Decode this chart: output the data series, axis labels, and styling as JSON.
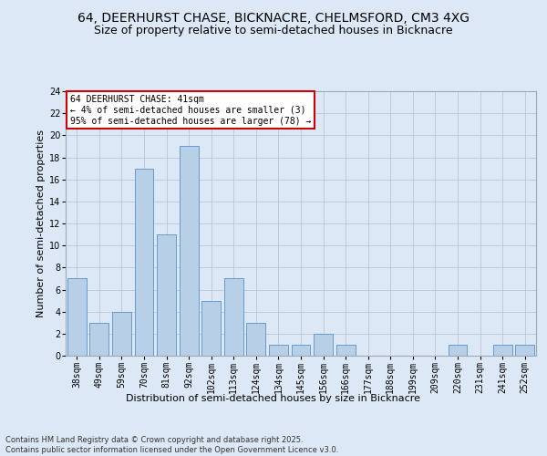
{
  "title1": "64, DEERHURST CHASE, BICKNACRE, CHELMSFORD, CM3 4XG",
  "title2": "Size of property relative to semi-detached houses in Bicknacre",
  "xlabel": "Distribution of semi-detached houses by size in Bicknacre",
  "ylabel": "Number of semi-detached properties",
  "categories": [
    "38sqm",
    "49sqm",
    "59sqm",
    "70sqm",
    "81sqm",
    "92sqm",
    "102sqm",
    "113sqm",
    "124sqm",
    "134sqm",
    "145sqm",
    "156sqm",
    "166sqm",
    "177sqm",
    "188sqm",
    "199sqm",
    "209sqm",
    "220sqm",
    "231sqm",
    "241sqm",
    "252sqm"
  ],
  "values": [
    7,
    3,
    4,
    17,
    11,
    19,
    5,
    7,
    3,
    1,
    1,
    2,
    1,
    0,
    0,
    0,
    0,
    1,
    0,
    1,
    1
  ],
  "bar_color": "#b8cfe8",
  "bar_edge_color": "#6699cc",
  "annotation_text": "64 DEERHURST CHASE: 41sqm\n← 4% of semi-detached houses are smaller (3)\n95% of semi-detached houses are larger (78) →",
  "annotation_box_color": "#ffffff",
  "annotation_box_edge": "#cc0000",
  "bg_color": "#dce8f5",
  "ylim": [
    0,
    24
  ],
  "yticks": [
    0,
    2,
    4,
    6,
    8,
    10,
    12,
    14,
    16,
    18,
    20,
    22,
    24
  ],
  "footer": "Contains HM Land Registry data © Crown copyright and database right 2025.\nContains public sector information licensed under the Open Government Licence v3.0.",
  "title_fontsize": 10,
  "subtitle_fontsize": 9,
  "axis_label_fontsize": 8,
  "tick_fontsize": 7,
  "annotation_fontsize": 7,
  "footer_fontsize": 6
}
